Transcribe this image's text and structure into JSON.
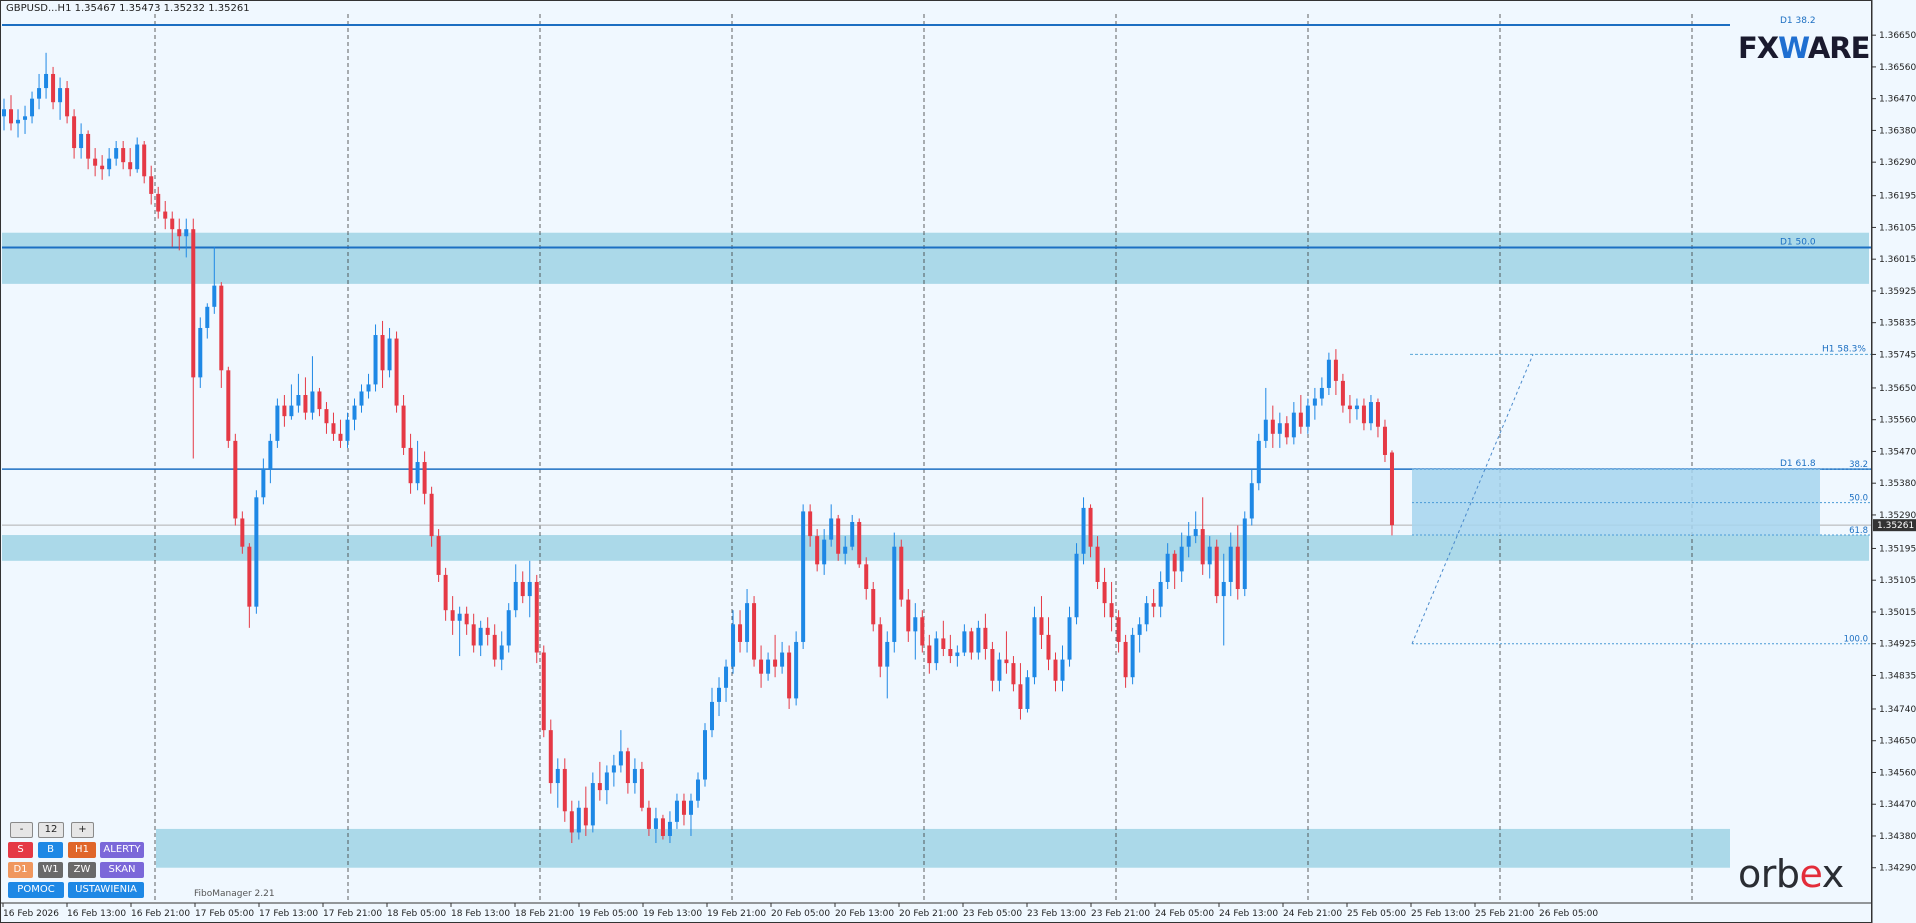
{
  "symbol_title": "GBPUSD...H1  1.35467 1.35473 1.35232 1.35261",
  "current_price": "1.35261",
  "price_axis": {
    "labels": [
      "1.36650",
      "1.36560",
      "1.36470",
      "1.36380",
      "1.36290",
      "1.36195",
      "1.36105",
      "1.36015",
      "1.35925",
      "1.35835",
      "1.35745",
      "1.35650",
      "1.35560",
      "1.35470",
      "1.35380",
      "1.35290",
      "1.35195",
      "1.35105",
      "1.35015",
      "1.34925",
      "1.34835",
      "1.34740",
      "1.34650",
      "1.34560",
      "1.34470",
      "1.34380",
      "1.34290"
    ],
    "max": 1.3671,
    "min": 1.3419
  },
  "time_axis": {
    "labels": [
      "16 Feb 2026",
      "16 Feb 13:00",
      "16 Feb 21:00",
      "17 Feb 05:00",
      "17 Feb 13:00",
      "17 Feb 21:00",
      "18 Feb 05:00",
      "18 Feb 13:00",
      "18 Feb 21:00",
      "19 Feb 05:00",
      "19 Feb 13:00",
      "19 Feb 21:00",
      "20 Feb 05:00",
      "20 Feb 13:00",
      "20 Feb 21:00",
      "23 Feb 05:00",
      "23 Feb 13:00",
      "23 Feb 21:00",
      "24 Feb 05:00",
      "24 Feb 13:00",
      "24 Feb 21:00",
      "25 Feb 05:00",
      "25 Feb 13:00",
      "25 Feb 21:00",
      "26 Feb 05:00"
    ]
  },
  "levels": [
    {
      "label": "D1 38.2",
      "price": 1.3668
    },
    {
      "label": "D1 50.0",
      "price": 1.36048
    },
    {
      "label": "D1 61.8",
      "price": 1.3542
    },
    {
      "label": "H1 58.3%",
      "price": 1.35745
    }
  ],
  "zones": [
    {
      "high": 1.3609,
      "low": 1.35945
    },
    {
      "high": 1.35233,
      "low": 1.3516
    },
    {
      "high": 1.344,
      "low": 1.3429
    }
  ],
  "fib": {
    "labels": [
      "38.2",
      "50.0",
      "61.8",
      "100.0"
    ],
    "prices": [
      1.3542,
      1.35325,
      1.35233,
      1.34925
    ]
  },
  "controls": {
    "minus": "-",
    "period": "12",
    "plus": "+",
    "row1": [
      "S",
      "B",
      "H1",
      "ALERTY"
    ],
    "row2": [
      "D1",
      "W1",
      "ZW",
      "SKAN"
    ],
    "row3": [
      "POMOC",
      "USTAWIENIA"
    ]
  },
  "colors": {
    "bull": "#1e88e5",
    "bear": "#e53945",
    "zone": "#abd9e9",
    "level": "#1c6fc2",
    "background": "#f0f8ff"
  },
  "fibomanager_label": "FiboManager 2.21",
  "brand_top": {
    "left": "FX",
    "mid": "W",
    "right": "ARE"
  },
  "brand_bottom": {
    "left": "orb",
    "mid": "e",
    "right": "x"
  },
  "chart_data": {
    "type": "candlestick",
    "title": "GBPUSD...H1",
    "y_range": [
      1.3419,
      1.3671
    ],
    "candles": [
      [
        1.3642,
        1.3647,
        1.3638,
        1.3644
      ],
      [
        1.3644,
        1.3648,
        1.3638,
        1.364
      ],
      [
        1.364,
        1.3644,
        1.3636,
        1.3641
      ],
      [
        1.3641,
        1.3645,
        1.3637,
        1.3642
      ],
      [
        1.3642,
        1.3649,
        1.364,
        1.3647
      ],
      [
        1.3647,
        1.3654,
        1.3644,
        1.365
      ],
      [
        1.365,
        1.366,
        1.3647,
        1.3654
      ],
      [
        1.3654,
        1.3656,
        1.3644,
        1.3646
      ],
      [
        1.3646,
        1.3653,
        1.3641,
        1.365
      ],
      [
        1.365,
        1.3652,
        1.364,
        1.3642
      ],
      [
        1.3642,
        1.3644,
        1.363,
        1.3633
      ],
      [
        1.3633,
        1.364,
        1.363,
        1.3637
      ],
      [
        1.3637,
        1.3638,
        1.3627,
        1.363
      ],
      [
        1.363,
        1.3633,
        1.3625,
        1.3628
      ],
      [
        1.3628,
        1.3631,
        1.3624,
        1.3627
      ],
      [
        1.3627,
        1.3633,
        1.3625,
        1.363
      ],
      [
        1.363,
        1.3635,
        1.3628,
        1.3633
      ],
      [
        1.3633,
        1.3635,
        1.3627,
        1.3629
      ],
      [
        1.3629,
        1.3633,
        1.3625,
        1.3627
      ],
      [
        1.3627,
        1.3636,
        1.3626,
        1.3634
      ],
      [
        1.3634,
        1.3635,
        1.3623,
        1.3625
      ],
      [
        1.3625,
        1.3628,
        1.3617,
        1.362
      ],
      [
        1.362,
        1.3622,
        1.3613,
        1.3615
      ],
      [
        1.3615,
        1.3618,
        1.361,
        1.3613
      ],
      [
        1.3613,
        1.3615,
        1.3605,
        1.361
      ],
      [
        1.361,
        1.3613,
        1.3604,
        1.3608
      ],
      [
        1.3608,
        1.3613,
        1.3602,
        1.361
      ],
      [
        1.361,
        1.3613,
        1.3545,
        1.3568
      ],
      [
        1.3568,
        1.3585,
        1.3565,
        1.3582
      ],
      [
        1.3582,
        1.3589,
        1.3579,
        1.3588
      ],
      [
        1.3588,
        1.3605,
        1.3586,
        1.3594
      ],
      [
        1.3594,
        1.3595,
        1.3565,
        1.357
      ],
      [
        1.357,
        1.3571,
        1.3548,
        1.355
      ],
      [
        1.355,
        1.3552,
        1.3526,
        1.3528
      ],
      [
        1.3528,
        1.353,
        1.3518,
        1.352
      ],
      [
        1.352,
        1.3521,
        1.3497,
        1.3503
      ],
      [
        1.3503,
        1.3536,
        1.3501,
        1.3534
      ],
      [
        1.3534,
        1.3545,
        1.3532,
        1.3542
      ],
      [
        1.3542,
        1.3552,
        1.3538,
        1.355
      ],
      [
        1.355,
        1.3562,
        1.3548,
        1.356
      ],
      [
        1.356,
        1.3563,
        1.3554,
        1.3557
      ],
      [
        1.3557,
        1.3566,
        1.3556,
        1.356
      ],
      [
        1.356,
        1.3569,
        1.3558,
        1.3563
      ],
      [
        1.3563,
        1.3568,
        1.3556,
        1.3558
      ],
      [
        1.3558,
        1.3574,
        1.3556,
        1.3564
      ],
      [
        1.3564,
        1.3565,
        1.3557,
        1.3559
      ],
      [
        1.3559,
        1.3561,
        1.3552,
        1.3555
      ],
      [
        1.3555,
        1.3558,
        1.355,
        1.3552
      ],
      [
        1.3552,
        1.3556,
        1.3548,
        1.355
      ],
      [
        1.355,
        1.3558,
        1.3548,
        1.3556
      ],
      [
        1.3556,
        1.3562,
        1.3553,
        1.356
      ],
      [
        1.356,
        1.3566,
        1.3558,
        1.3564
      ],
      [
        1.3564,
        1.3569,
        1.3562,
        1.3566
      ],
      [
        1.3566,
        1.3583,
        1.3564,
        1.358
      ],
      [
        1.358,
        1.3584,
        1.3565,
        1.357
      ],
      [
        1.357,
        1.3582,
        1.3568,
        1.3579
      ],
      [
        1.3579,
        1.3581,
        1.3558,
        1.356
      ],
      [
        1.356,
        1.3563,
        1.3546,
        1.3548
      ],
      [
        1.3548,
        1.3552,
        1.3535,
        1.3538
      ],
      [
        1.3538,
        1.355,
        1.3536,
        1.3544
      ],
      [
        1.3544,
        1.3547,
        1.3532,
        1.3535
      ],
      [
        1.3535,
        1.3537,
        1.352,
        1.3523
      ],
      [
        1.3523,
        1.3525,
        1.351,
        1.3512
      ],
      [
        1.3512,
        1.3514,
        1.3499,
        1.3502
      ],
      [
        1.3502,
        1.3506,
        1.3495,
        1.3499
      ],
      [
        1.3499,
        1.3503,
        1.3489,
        1.3501
      ],
      [
        1.3501,
        1.3503,
        1.3495,
        1.3498
      ],
      [
        1.3498,
        1.3501,
        1.349,
        1.3492
      ],
      [
        1.3492,
        1.3499,
        1.3489,
        1.3497
      ],
      [
        1.3497,
        1.35,
        1.3492,
        1.3495
      ],
      [
        1.3495,
        1.3498,
        1.3486,
        1.3488
      ],
      [
        1.3488,
        1.3496,
        1.3485,
        1.3492
      ],
      [
        1.3492,
        1.3504,
        1.349,
        1.3502
      ],
      [
        1.3502,
        1.3515,
        1.35,
        1.351
      ],
      [
        1.351,
        1.3513,
        1.3504,
        1.3506
      ],
      [
        1.3506,
        1.3516,
        1.35,
        1.351
      ],
      [
        1.351,
        1.3512,
        1.3487,
        1.349
      ],
      [
        1.349,
        1.3492,
        1.3466,
        1.3468
      ],
      [
        1.3468,
        1.3471,
        1.345,
        1.3453
      ],
      [
        1.3453,
        1.346,
        1.3446,
        1.3457
      ],
      [
        1.3457,
        1.346,
        1.3442,
        1.3445
      ],
      [
        1.3445,
        1.3448,
        1.3436,
        1.3439
      ],
      [
        1.3439,
        1.3448,
        1.3437,
        1.3446
      ],
      [
        1.3446,
        1.3452,
        1.3438,
        1.3441
      ],
      [
        1.3441,
        1.3456,
        1.3439,
        1.3453
      ],
      [
        1.3453,
        1.3459,
        1.3448,
        1.3451
      ],
      [
        1.3451,
        1.3458,
        1.3447,
        1.3456
      ],
      [
        1.3456,
        1.3461,
        1.3452,
        1.3458
      ],
      [
        1.3458,
        1.3468,
        1.3456,
        1.3462
      ],
      [
        1.3462,
        1.3463,
        1.345,
        1.3453
      ],
      [
        1.3453,
        1.346,
        1.345,
        1.3457
      ],
      [
        1.3457,
        1.3459,
        1.3445,
        1.3446
      ],
      [
        1.3446,
        1.3448,
        1.3438,
        1.344
      ],
      [
        1.344,
        1.3446,
        1.3436,
        1.3443
      ],
      [
        1.3443,
        1.3444,
        1.3437,
        1.3438
      ],
      [
        1.3438,
        1.3445,
        1.3436,
        1.3442
      ],
      [
        1.3442,
        1.345,
        1.344,
        1.3448
      ],
      [
        1.3448,
        1.345,
        1.3441,
        1.3444
      ],
      [
        1.3444,
        1.345,
        1.3438,
        1.3448
      ],
      [
        1.3448,
        1.3456,
        1.3446,
        1.3454
      ],
      [
        1.3454,
        1.347,
        1.3452,
        1.3468
      ],
      [
        1.3468,
        1.348,
        1.3466,
        1.3476
      ],
      [
        1.3476,
        1.3483,
        1.3472,
        1.348
      ],
      [
        1.348,
        1.3488,
        1.3476,
        1.3486
      ],
      [
        1.3486,
        1.3502,
        1.3484,
        1.3498
      ],
      [
        1.3498,
        1.3502,
        1.349,
        1.3493
      ],
      [
        1.3493,
        1.3508,
        1.349,
        1.3504
      ],
      [
        1.3504,
        1.3506,
        1.3486,
        1.3488
      ],
      [
        1.3488,
        1.3492,
        1.348,
        1.3484
      ],
      [
        1.3484,
        1.349,
        1.3482,
        1.3488
      ],
      [
        1.3488,
        1.3495,
        1.3483,
        1.3486
      ],
      [
        1.3486,
        1.3493,
        1.3484,
        1.349
      ],
      [
        1.349,
        1.3492,
        1.3474,
        1.3477
      ],
      [
        1.3477,
        1.3496,
        1.3475,
        1.3493
      ],
      [
        1.3493,
        1.3532,
        1.3491,
        1.353
      ],
      [
        1.353,
        1.3532,
        1.352,
        1.3523
      ],
      [
        1.3523,
        1.3525,
        1.3513,
        1.3515
      ],
      [
        1.3515,
        1.3525,
        1.3512,
        1.3522
      ],
      [
        1.3522,
        1.3532,
        1.352,
        1.3528
      ],
      [
        1.3528,
        1.3529,
        1.3516,
        1.3518
      ],
      [
        1.3518,
        1.3523,
        1.3515,
        1.352
      ],
      [
        1.352,
        1.3529,
        1.3519,
        1.3527
      ],
      [
        1.3527,
        1.3528,
        1.3514,
        1.3515
      ],
      [
        1.3515,
        1.3517,
        1.3505,
        1.3508
      ],
      [
        1.3508,
        1.351,
        1.3496,
        1.3498
      ],
      [
        1.3498,
        1.35,
        1.3483,
        1.3486
      ],
      [
        1.3486,
        1.3496,
        1.3477,
        1.3493
      ],
      [
        1.3493,
        1.3524,
        1.349,
        1.352
      ],
      [
        1.352,
        1.3522,
        1.3503,
        1.3505
      ],
      [
        1.3505,
        1.3508,
        1.3493,
        1.3496
      ],
      [
        1.3496,
        1.3504,
        1.3488,
        1.35
      ],
      [
        1.35,
        1.3502,
        1.349,
        1.3492
      ],
      [
        1.3492,
        1.3495,
        1.3484,
        1.3487
      ],
      [
        1.3487,
        1.3496,
        1.3485,
        1.3494
      ],
      [
        1.3494,
        1.3499,
        1.3489,
        1.3491
      ],
      [
        1.3491,
        1.3495,
        1.3487,
        1.3489
      ],
      [
        1.3489,
        1.3492,
        1.3486,
        1.349
      ],
      [
        1.349,
        1.3498,
        1.3489,
        1.3496
      ],
      [
        1.3496,
        1.3497,
        1.3488,
        1.349
      ],
      [
        1.349,
        1.3499,
        1.3488,
        1.3497
      ],
      [
        1.3497,
        1.3501,
        1.3488,
        1.3491
      ],
      [
        1.3491,
        1.3493,
        1.3479,
        1.3482
      ],
      [
        1.3482,
        1.349,
        1.3479,
        1.3488
      ],
      [
        1.3488,
        1.3496,
        1.3484,
        1.3487
      ],
      [
        1.3487,
        1.3489,
        1.3479,
        1.3481
      ],
      [
        1.3481,
        1.3487,
        1.3471,
        1.3474
      ],
      [
        1.3474,
        1.3485,
        1.3473,
        1.3483
      ],
      [
        1.3483,
        1.3503,
        1.3481,
        1.35
      ],
      [
        1.35,
        1.3506,
        1.3491,
        1.3495
      ],
      [
        1.3495,
        1.35,
        1.3485,
        1.3488
      ],
      [
        1.3488,
        1.349,
        1.3479,
        1.3482
      ],
      [
        1.3482,
        1.3492,
        1.3479,
        1.3488
      ],
      [
        1.3488,
        1.3503,
        1.3486,
        1.35
      ],
      [
        1.35,
        1.3521,
        1.3498,
        1.3518
      ],
      [
        1.3518,
        1.3534,
        1.3515,
        1.3531
      ],
      [
        1.3531,
        1.3532,
        1.3517,
        1.352
      ],
      [
        1.352,
        1.3523,
        1.3508,
        1.351
      ],
      [
        1.351,
        1.3514,
        1.35,
        1.3504
      ],
      [
        1.3504,
        1.351,
        1.3496,
        1.35
      ],
      [
        1.35,
        1.3502,
        1.349,
        1.3493
      ],
      [
        1.3493,
        1.3495,
        1.348,
        1.3483
      ],
      [
        1.3483,
        1.3497,
        1.3481,
        1.3495
      ],
      [
        1.3495,
        1.35,
        1.349,
        1.3498
      ],
      [
        1.3498,
        1.3506,
        1.3496,
        1.3504
      ],
      [
        1.3504,
        1.3508,
        1.35,
        1.3503
      ],
      [
        1.3503,
        1.3513,
        1.35,
        1.351
      ],
      [
        1.351,
        1.3521,
        1.3508,
        1.3518
      ],
      [
        1.3518,
        1.3519,
        1.3508,
        1.3513
      ],
      [
        1.3513,
        1.3524,
        1.351,
        1.352
      ],
      [
        1.352,
        1.3527,
        1.3517,
        1.3523
      ],
      [
        1.3523,
        1.353,
        1.3521,
        1.3525
      ],
      [
        1.3525,
        1.3534,
        1.3512,
        1.3515
      ],
      [
        1.3515,
        1.3523,
        1.3511,
        1.352
      ],
      [
        1.352,
        1.3522,
        1.3504,
        1.3506
      ],
      [
        1.3506,
        1.3518,
        1.3492,
        1.351
      ],
      [
        1.351,
        1.3524,
        1.3506,
        1.352
      ],
      [
        1.352,
        1.3526,
        1.3505,
        1.3508
      ],
      [
        1.3508,
        1.353,
        1.3506,
        1.3528
      ],
      [
        1.3528,
        1.3542,
        1.3526,
        1.3538
      ],
      [
        1.3538,
        1.3552,
        1.3536,
        1.355
      ],
      [
        1.355,
        1.3565,
        1.3548,
        1.3556
      ],
      [
        1.3556,
        1.356,
        1.3548,
        1.3552
      ],
      [
        1.3552,
        1.3558,
        1.3548,
        1.3555
      ],
      [
        1.3555,
        1.3557,
        1.3549,
        1.3551
      ],
      [
        1.3551,
        1.3561,
        1.3549,
        1.3558
      ],
      [
        1.3558,
        1.3563,
        1.3552,
        1.3554
      ],
      [
        1.3554,
        1.3562,
        1.3552,
        1.356
      ],
      [
        1.356,
        1.3565,
        1.3556,
        1.3562
      ],
      [
        1.3562,
        1.3568,
        1.356,
        1.3565
      ],
      [
        1.3565,
        1.3575,
        1.3563,
        1.3573
      ],
      [
        1.3573,
        1.3576,
        1.3563,
        1.3567
      ],
      [
        1.3567,
        1.3569,
        1.3558,
        1.356
      ],
      [
        1.356,
        1.3563,
        1.3555,
        1.3559
      ],
      [
        1.3559,
        1.3562,
        1.3556,
        1.356
      ],
      [
        1.356,
        1.3562,
        1.3553,
        1.3555
      ],
      [
        1.3555,
        1.3563,
        1.3553,
        1.3561
      ],
      [
        1.3561,
        1.3562,
        1.3551,
        1.3554
      ],
      [
        1.3554,
        1.3556,
        1.3544,
        1.3546
      ],
      [
        1.35467,
        1.35473,
        1.35232,
        1.35261
      ]
    ]
  }
}
